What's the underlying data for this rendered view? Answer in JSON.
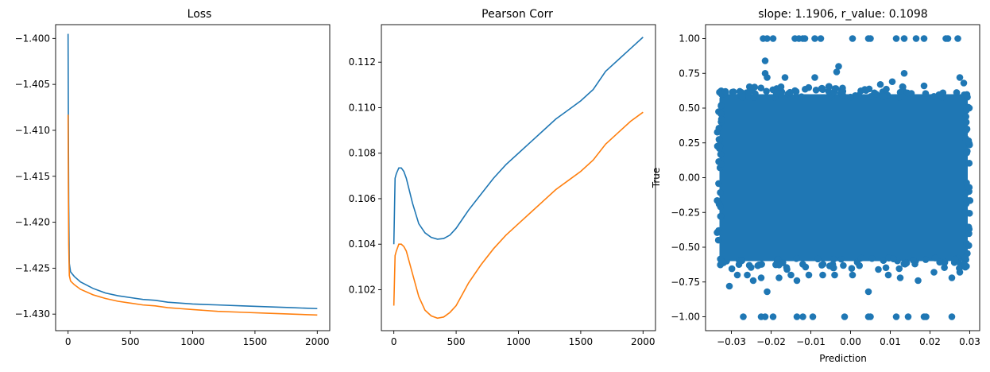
{
  "chart_data": [
    {
      "type": "line",
      "title": "Loss",
      "xlabel": "",
      "ylabel": "",
      "xlim": [
        -100,
        2100
      ],
      "ylim": [
        -1.4318,
        -1.3985
      ],
      "xticks": [
        0,
        500,
        1000,
        1500,
        2000
      ],
      "xtick_labels": [
        "0",
        "500",
        "1000",
        "1500",
        "2000"
      ],
      "yticks": [
        -1.4,
        -1.405,
        -1.41,
        -1.415,
        -1.42,
        -1.425,
        -1.43
      ],
      "ytick_labels": [
        "−1.400",
        "−1.405",
        "−1.410",
        "−1.415",
        "−1.420",
        "−1.425",
        "−1.430"
      ],
      "series": [
        {
          "color": "#1f77b4",
          "x": [
            0,
            2,
            5,
            10,
            20,
            50,
            100,
            200,
            300,
            400,
            500,
            600,
            700,
            800,
            900,
            1000,
            1200,
            1400,
            1600,
            1800,
            2000
          ],
          "y": [
            -1.3995,
            -1.408,
            -1.418,
            -1.4245,
            -1.4254,
            -1.4259,
            -1.4265,
            -1.4272,
            -1.4277,
            -1.428,
            -1.4282,
            -1.4284,
            -1.4285,
            -1.4287,
            -1.4288,
            -1.4289,
            -1.429,
            -1.4291,
            -1.4292,
            -1.4293,
            -1.4294
          ]
        },
        {
          "color": "#ff7f0e",
          "x": [
            0,
            2,
            5,
            10,
            20,
            50,
            100,
            200,
            300,
            400,
            500,
            600,
            700,
            800,
            900,
            1000,
            1200,
            1400,
            1600,
            1800,
            2000
          ],
          "y": [
            -1.4083,
            -1.416,
            -1.4225,
            -1.4258,
            -1.4264,
            -1.4268,
            -1.4273,
            -1.4279,
            -1.4283,
            -1.4286,
            -1.4288,
            -1.429,
            -1.4291,
            -1.4293,
            -1.4294,
            -1.4295,
            -1.4297,
            -1.4298,
            -1.4299,
            -1.43,
            -1.4301
          ]
        }
      ]
    },
    {
      "type": "line",
      "title": "Pearson Corr",
      "xlabel": "",
      "ylabel": "",
      "xlim": [
        -100,
        2100
      ],
      "ylim": [
        0.1002,
        0.11365
      ],
      "xticks": [
        0,
        500,
        1000,
        1500,
        2000
      ],
      "xtick_labels": [
        "0",
        "500",
        "1000",
        "1500",
        "2000"
      ],
      "yticks": [
        0.102,
        0.104,
        0.106,
        0.108,
        0.11,
        0.112
      ],
      "ytick_labels": [
        "0.102",
        "0.104",
        "0.106",
        "0.108",
        "0.110",
        "0.112"
      ],
      "series": [
        {
          "color": "#1f77b4",
          "x": [
            0,
            10,
            20,
            40,
            60,
            80,
            100,
            150,
            200,
            250,
            300,
            350,
            400,
            450,
            500,
            550,
            600,
            700,
            800,
            900,
            1000,
            1100,
            1200,
            1300,
            1400,
            1500,
            1600,
            1700,
            1800,
            1900,
            2000
          ],
          "y": [
            0.104,
            0.1069,
            0.1071,
            0.10735,
            0.10735,
            0.1072,
            0.1069,
            0.1058,
            0.1049,
            0.1045,
            0.1043,
            0.10422,
            0.10425,
            0.1044,
            0.1047,
            0.1051,
            0.1055,
            0.1062,
            0.1069,
            0.1075,
            0.108,
            0.1085,
            0.109,
            0.1095,
            0.1099,
            0.1103,
            0.1108,
            0.1116,
            0.1121,
            0.1126,
            0.1131
          ]
        },
        {
          "color": "#ff7f0e",
          "x": [
            0,
            10,
            20,
            40,
            60,
            80,
            100,
            150,
            200,
            250,
            300,
            350,
            400,
            450,
            500,
            550,
            600,
            700,
            800,
            900,
            1000,
            1100,
            1200,
            1300,
            1400,
            1500,
            1600,
            1700,
            1800,
            1900,
            2000
          ],
          "y": [
            0.1013,
            0.1035,
            0.1037,
            0.104,
            0.104,
            0.1039,
            0.1037,
            0.1027,
            0.1017,
            0.1011,
            0.10085,
            0.10075,
            0.1008,
            0.101,
            0.1013,
            0.1018,
            0.1023,
            0.1031,
            0.1038,
            0.1044,
            0.1049,
            0.1054,
            0.1059,
            0.1064,
            0.1068,
            0.1072,
            0.1077,
            0.1084,
            0.1089,
            0.1094,
            0.1098
          ]
        }
      ]
    },
    {
      "type": "scatter",
      "title": "slope: 1.1906, r_value: 0.1098",
      "xlabel": "Prediction",
      "ylabel": "True",
      "xlim": [
        -0.0365,
        0.0325
      ],
      "ylim": [
        -1.1,
        1.1
      ],
      "xticks": [
        -0.03,
        -0.02,
        -0.01,
        0.0,
        0.01,
        0.02,
        0.03
      ],
      "xtick_labels": [
        "−0.03",
        "−0.02",
        "−0.01",
        "0.00",
        "0.01",
        "0.02",
        "0.03"
      ],
      "yticks": [
        1.0,
        0.75,
        0.5,
        0.25,
        0.0,
        -0.25,
        -0.5,
        -0.75,
        -1.0
      ],
      "ytick_labels": [
        "1.00",
        "0.75",
        "0.50",
        "0.25",
        "0.00",
        "−0.25",
        "−0.50",
        "−0.75",
        "−1.00"
      ],
      "color": "#1f77b4",
      "dense_region": {
        "x": [
          -0.033,
          0.0295
        ],
        "y": [
          -0.6,
          0.6
        ]
      },
      "points": [
        [
          -0.022,
          1.0
        ],
        [
          -0.021,
          1.0
        ],
        [
          -0.0195,
          1.0
        ],
        [
          -0.014,
          1.0
        ],
        [
          -0.013,
          1.0
        ],
        [
          -0.012,
          1.0
        ],
        [
          -0.0115,
          1.0
        ],
        [
          -0.009,
          1.0
        ],
        [
          -0.0075,
          1.0
        ],
        [
          0.0005,
          1.0
        ],
        [
          0.0045,
          1.0
        ],
        [
          0.005,
          1.0
        ],
        [
          0.0115,
          1.0
        ],
        [
          0.0135,
          1.0
        ],
        [
          0.0165,
          1.0
        ],
        [
          0.0185,
          1.0
        ],
        [
          0.024,
          1.0
        ],
        [
          0.0245,
          1.0
        ],
        [
          0.027,
          1.0
        ],
        [
          -0.027,
          -1.0
        ],
        [
          -0.0225,
          -1.0
        ],
        [
          -0.0215,
          -1.0
        ],
        [
          -0.0195,
          -1.0
        ],
        [
          -0.0135,
          -1.0
        ],
        [
          -0.012,
          -1.0
        ],
        [
          -0.0095,
          -1.0
        ],
        [
          -0.0015,
          -1.0
        ],
        [
          0.0045,
          -1.0
        ],
        [
          0.005,
          -1.0
        ],
        [
          0.0115,
          -1.0
        ],
        [
          0.0145,
          -1.0
        ],
        [
          0.0185,
          -1.0
        ],
        [
          0.019,
          -1.0
        ],
        [
          0.0255,
          -1.0
        ],
        [
          -0.0215,
          0.84
        ],
        [
          -0.0215,
          0.75
        ],
        [
          -0.021,
          0.72
        ],
        [
          -0.0165,
          0.72
        ],
        [
          -0.003,
          0.8
        ],
        [
          -0.0035,
          0.76
        ],
        [
          0.0135,
          0.75
        ],
        [
          0.0105,
          0.69
        ],
        [
          0.0185,
          0.66
        ],
        [
          -0.0325,
          0.6
        ],
        [
          -0.0315,
          0.62
        ],
        [
          0.0275,
          0.72
        ],
        [
          0.0285,
          0.68
        ],
        [
          -0.0325,
          0.42
        ],
        [
          0.0075,
          0.67
        ],
        [
          -0.009,
          0.72
        ],
        [
          -0.0305,
          -0.78
        ],
        [
          -0.0285,
          -0.7
        ],
        [
          -0.026,
          -0.7
        ],
        [
          -0.0245,
          -0.74
        ],
        [
          -0.0225,
          -0.72
        ],
        [
          -0.021,
          -0.82
        ],
        [
          -0.018,
          -0.72
        ],
        [
          -0.015,
          -0.7
        ],
        [
          -0.0135,
          -0.74
        ],
        [
          -0.0105,
          -0.7
        ],
        [
          -0.007,
          -0.7
        ],
        [
          -0.004,
          -0.7
        ],
        [
          0.0005,
          -0.7
        ],
        [
          0.0045,
          -0.82
        ],
        [
          0.0095,
          -0.7
        ],
        [
          0.0125,
          -0.72
        ],
        [
          0.017,
          -0.74
        ],
        [
          0.021,
          -0.68
        ],
        [
          0.0255,
          -0.72
        ],
        [
          0.0275,
          -0.68
        ],
        [
          -0.0325,
          -0.6
        ],
        [
          0.0285,
          -0.62
        ],
        [
          -0.016,
          -0.66
        ],
        [
          0.007,
          -0.66
        ]
      ]
    }
  ]
}
